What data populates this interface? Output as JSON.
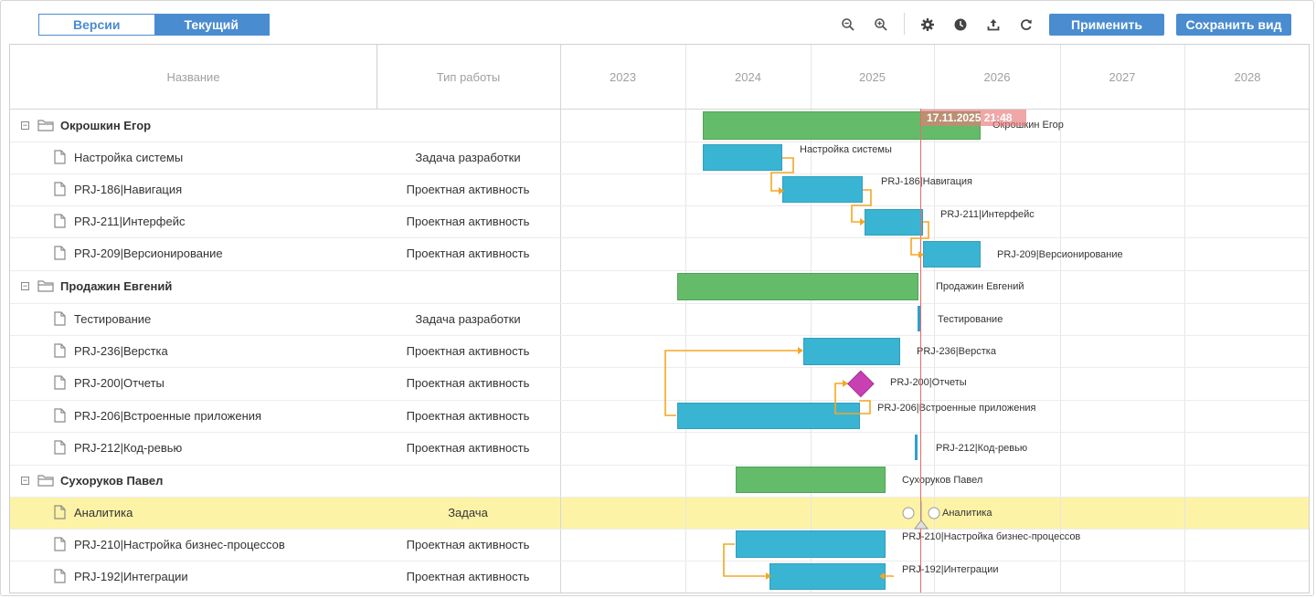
{
  "toolbar": {
    "versions_label": "Версии",
    "current_label": "Текущий",
    "apply_label": "Применить",
    "save_view_label": "Сохранить вид",
    "icons": [
      "zoom-out-icon",
      "zoom-in-icon",
      "gear-icon",
      "clock-icon",
      "export-icon",
      "refresh-icon"
    ]
  },
  "columns": {
    "name": "Название",
    "work_type": "Тип работы",
    "years": [
      "2023",
      "2024",
      "2025",
      "2026",
      "2027",
      "2028"
    ]
  },
  "today_marker": "17.11.2025 21:48",
  "rows": [
    {
      "name": "Окрошкин Егор",
      "type": "",
      "group": true,
      "bar_label": "Окрошкин Егор"
    },
    {
      "name": "Настройка системы",
      "type": "Задача разработки",
      "group": false,
      "bar_label": "Настройка системы"
    },
    {
      "name": "PRJ-186|Навигация",
      "type": "Проектная активность",
      "group": false,
      "bar_label": "PRJ-186|Навигация"
    },
    {
      "name": "PRJ-211|Интерфейс",
      "type": "Проектная активность",
      "group": false,
      "bar_label": "PRJ-211|Интерфейс"
    },
    {
      "name": "PRJ-209|Версионирование",
      "type": "Проектная активность",
      "group": false,
      "bar_label": "PRJ-209|Версионирование"
    },
    {
      "name": "Продажин Евгений",
      "type": "",
      "group": true,
      "bar_label": "Продажин Евгений"
    },
    {
      "name": "Тестирование",
      "type": "Задача разработки",
      "group": false,
      "bar_label": "Тестирование"
    },
    {
      "name": "PRJ-236|Верстка",
      "type": "Проектная активность",
      "group": false,
      "bar_label": "PRJ-236|Верстка"
    },
    {
      "name": "PRJ-200|Отчеты",
      "type": "Проектная активность",
      "group": false,
      "bar_label": "PRJ-200|Отчеты"
    },
    {
      "name": "PRJ-206|Встроенные приложения",
      "type": "Проектная активность",
      "group": false,
      "bar_label": "PRJ-206|Встроенные приложения"
    },
    {
      "name": "PRJ-212|Код-ревью",
      "type": "Проектная активность",
      "group": false,
      "bar_label": "PRJ-212|Код-ревью"
    },
    {
      "name": "Сухоруков Павел",
      "type": "",
      "group": true,
      "bar_label": "Сухоруков Павел"
    },
    {
      "name": "Аналитика",
      "type": "Задача",
      "group": false,
      "selected": true,
      "bar_label": "Аналитика"
    },
    {
      "name": "PRJ-210|Настройка бизнес-процессов",
      "type": "Проектная активность",
      "group": false,
      "bar_label": "PRJ-210|Настройка бизнес-процессов"
    },
    {
      "name": "PRJ-192|Интеграции",
      "type": "Проектная активность",
      "group": false,
      "bar_label": "PRJ-192|Интеграции"
    }
  ],
  "colors": {
    "accent": "#4a8cd0",
    "group_bar": "#64bc6a",
    "task_bar": "#3ab4d3",
    "milestone": "#c93fb4",
    "link": "#f5a623",
    "today": "#e86a6a",
    "selected_row": "#fdf3a6"
  }
}
